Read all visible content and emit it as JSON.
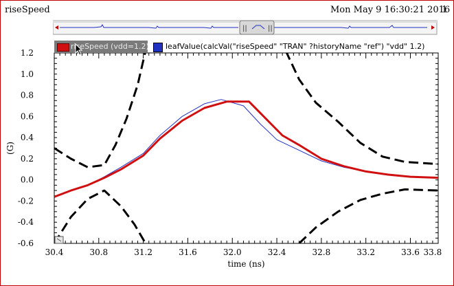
{
  "window": {
    "title": "riseSpeed",
    "timestamp": "Mon May 9 16:30:21 2016",
    "page": "1"
  },
  "legend": [
    {
      "label": "riseSpeed (vdd=1.2)",
      "color": "#d01010"
    },
    {
      "label": "leafValue(calcVal(\"riseSpeed\" \"TRAN\" ?historyName \"ref\") \"vdd\" 1.2)",
      "color": "#2030c0"
    }
  ],
  "icons": {
    "cursor": "mouse-pointer-icon",
    "zoom": "zoom-box-icon"
  },
  "chart_data": {
    "type": "line",
    "xlabel": "time (ns)",
    "ylabel": "(G)",
    "xlim": [
      30.4,
      33.85
    ],
    "ylim": [
      -0.6,
      1.2
    ],
    "xticks": [
      "30.4",
      "30.8",
      "31.2",
      "31.6",
      "32.0",
      "32.4",
      "32.8",
      "33.2",
      "33.6",
      "33.8"
    ],
    "xtick_values": [
      30.4,
      30.8,
      31.2,
      31.6,
      32.0,
      32.4,
      32.8,
      33.2,
      33.6,
      33.8
    ],
    "yticks": [
      "1.2",
      "1.0",
      "0.8",
      "0.6",
      "0.4",
      "0.2",
      "0.0",
      "-0.2",
      "-0.4",
      "-0.6"
    ],
    "ytick_values": [
      1.2,
      1.0,
      0.8,
      0.6,
      0.4,
      0.2,
      0.0,
      -0.2,
      -0.4,
      -0.6
    ],
    "grid": false,
    "series": [
      {
        "name": "riseSpeed (vdd=1.2)",
        "color": "#d01010",
        "style": "solid-thick",
        "x": [
          30.4,
          30.55,
          30.7,
          30.85,
          31.0,
          31.2,
          31.35,
          31.55,
          31.75,
          31.95,
          32.15,
          32.3,
          32.45,
          32.6,
          32.8,
          33.0,
          33.2,
          33.4,
          33.6,
          33.85
        ],
        "y": [
          -0.16,
          -0.1,
          -0.05,
          0.02,
          0.1,
          0.23,
          0.39,
          0.56,
          0.68,
          0.74,
          0.74,
          0.58,
          0.42,
          0.33,
          0.2,
          0.13,
          0.08,
          0.05,
          0.03,
          0.02
        ]
      },
      {
        "name": "leafValue(calcVal(\"riseSpeed\" \"TRAN\" ?historyName \"ref\") \"vdd\" 1.2)",
        "color": "#2030c0",
        "style": "solid-thin",
        "x": [
          30.4,
          30.55,
          30.7,
          30.85,
          31.0,
          31.2,
          31.35,
          31.55,
          31.75,
          31.9,
          32.1,
          32.25,
          32.4,
          32.6,
          32.8,
          33.0,
          33.2,
          33.4,
          33.6,
          33.85
        ],
        "y": [
          -0.16,
          -0.1,
          -0.05,
          0.03,
          0.12,
          0.25,
          0.42,
          0.6,
          0.72,
          0.76,
          0.7,
          0.53,
          0.38,
          0.28,
          0.18,
          0.12,
          0.08,
          0.05,
          0.03,
          0.02
        ]
      },
      {
        "name": "",
        "color": "#000000",
        "style": "dashed",
        "x": [
          30.4,
          30.55,
          30.7,
          30.85,
          30.95,
          31.05,
          31.15,
          31.22
        ],
        "y": [
          0.3,
          0.2,
          0.12,
          0.14,
          0.33,
          0.58,
          0.9,
          1.22
        ]
      },
      {
        "name": "",
        "color": "#000000",
        "style": "dashed",
        "x": [
          30.4,
          30.55,
          30.7,
          30.85,
          31.0,
          31.12,
          31.22
        ],
        "y": [
          -0.6,
          -0.35,
          -0.18,
          -0.1,
          -0.25,
          -0.42,
          -0.6
        ]
      },
      {
        "name": "",
        "color": "#000000",
        "style": "dashed",
        "x": [
          32.48,
          32.6,
          32.75,
          32.95,
          33.15,
          33.35,
          33.55,
          33.85
        ],
        "y": [
          1.22,
          0.95,
          0.73,
          0.55,
          0.35,
          0.22,
          0.17,
          0.15
        ]
      },
      {
        "name": "",
        "color": "#000000",
        "style": "dashed",
        "x": [
          32.6,
          32.75,
          32.95,
          33.15,
          33.35,
          33.55,
          33.85
        ],
        "y": [
          -0.6,
          -0.45,
          -0.3,
          -0.19,
          -0.13,
          -0.09,
          -0.1
        ]
      }
    ]
  }
}
